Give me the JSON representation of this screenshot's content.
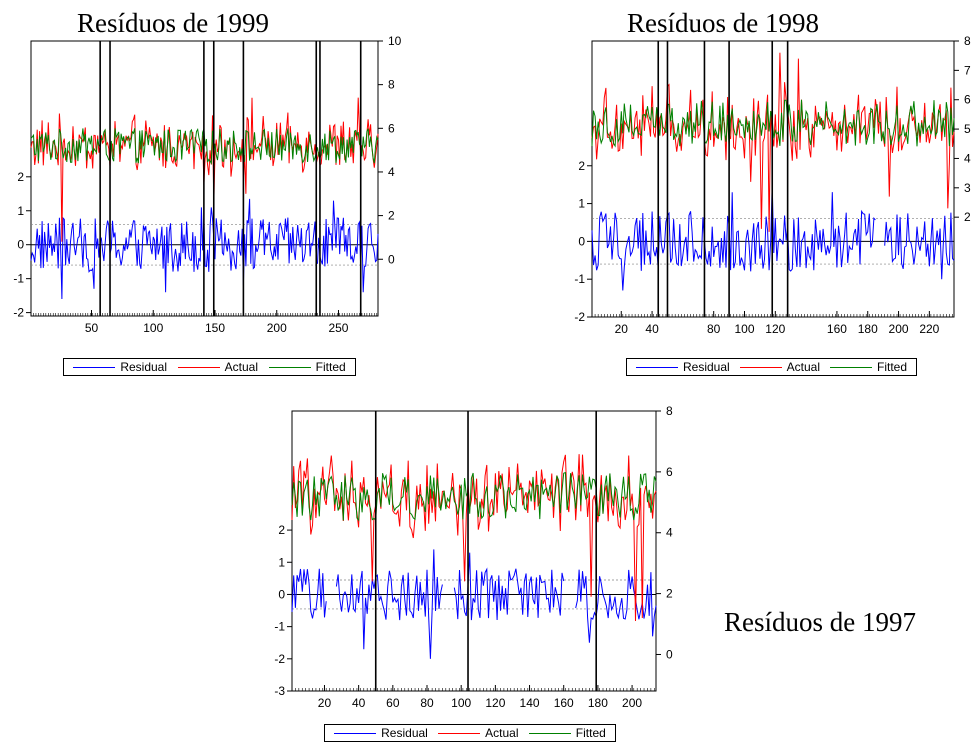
{
  "colors": {
    "residual": "#0000ff",
    "actual": "#ff0000",
    "fitted": "#008000",
    "frame": "#000000",
    "band": "#808080"
  },
  "chart_data": [
    {
      "id": "c1999",
      "type": "line",
      "title": "Resíduos de 1999",
      "series": [
        {
          "name": "Residual"
        },
        {
          "name": "Actual"
        },
        {
          "name": "Fitted"
        }
      ],
      "x_range": [
        1,
        282
      ],
      "x_ticks": [
        50,
        100,
        150,
        200,
        250
      ],
      "left_axis": {
        "ticks": [
          -2,
          -1,
          0,
          1,
          2
        ],
        "range": [
          -2.1,
          6.0
        ]
      },
      "right_axis": {
        "ticks": [
          0,
          2,
          4,
          6,
          8,
          10
        ],
        "range": [
          -2.6,
          10.0
        ]
      },
      "band": 0.6,
      "vlines": [
        57,
        65,
        141,
        149,
        173,
        232,
        235,
        268
      ],
      "n": 282,
      "residual_gaps": [],
      "residual_spikes": [
        [
          26,
          -1.6
        ],
        [
          52,
          -1.3
        ],
        [
          110,
          -1.4
        ],
        [
          139,
          1.1
        ],
        [
          147,
          1.1
        ],
        [
          173,
          -1.2
        ],
        [
          178,
          1.35
        ],
        [
          246,
          1.3
        ],
        [
          270,
          -1.4
        ]
      ],
      "actual_spikes": [
        [
          26,
          0.8
        ],
        [
          141,
          3.4
        ],
        [
          149,
          2.5
        ],
        [
          175,
          3.0
        ],
        [
          180,
          7.4
        ],
        [
          266,
          7.4
        ]
      ]
    },
    {
      "id": "c1998",
      "type": "line",
      "title": "Resíduos de 1998",
      "series": [
        {
          "name": "Residual"
        },
        {
          "name": "Actual"
        },
        {
          "name": "Fitted"
        }
      ],
      "x_range": [
        1,
        236
      ],
      "x_ticks": [
        20,
        40,
        80,
        100,
        120,
        160,
        180,
        200,
        220
      ],
      "left_axis": {
        "ticks": [
          -2,
          -1,
          0,
          1,
          2
        ],
        "range": [
          -2.0,
          5.3
        ]
      },
      "right_axis": {
        "ticks": [
          2,
          3,
          4,
          5,
          6,
          7,
          8
        ],
        "range": [
          -1.4,
          8.0
        ]
      },
      "band": 0.6,
      "vlines": [
        44,
        50,
        74,
        90,
        118,
        128
      ],
      "n": 236,
      "residual_gaps": [
        [
          186,
          190
        ]
      ],
      "residual_spikes": [
        [
          21,
          -1.3
        ],
        [
          92,
          1.3
        ],
        [
          118,
          1.5
        ],
        [
          157,
          1.3
        ],
        [
          190,
          -1.5
        ],
        [
          228,
          -1.0
        ]
      ],
      "actual_spikes": [
        [
          104,
          3.2
        ],
        [
          111,
          1.6
        ],
        [
          116,
          1.5
        ],
        [
          123,
          7.6
        ],
        [
          135,
          7.4
        ],
        [
          194,
          2.7
        ],
        [
          232,
          2.3
        ]
      ]
    },
    {
      "id": "c1997",
      "type": "line",
      "title": "Resíduos de 1997",
      "series": [
        {
          "name": "Residual"
        },
        {
          "name": "Actual"
        },
        {
          "name": "Fitted"
        }
      ],
      "x_range": [
        1,
        214
      ],
      "x_ticks": [
        20,
        40,
        60,
        80,
        100,
        120,
        140,
        160,
        180,
        200
      ],
      "left_axis": {
        "ticks": [
          -3,
          -2,
          -1,
          0,
          1,
          2
        ],
        "range": [
          -3.0,
          5.7
        ]
      },
      "right_axis": {
        "ticks": [
          0,
          2,
          4,
          6,
          8
        ],
        "range": [
          -1.2,
          8.0
        ]
      },
      "band": 0.45,
      "vlines": [
        50,
        104,
        179
      ],
      "n": 214,
      "residual_gaps": [
        [
          22,
          26
        ],
        [
          90,
          95
        ],
        [
          161,
          166
        ]
      ],
      "residual_spikes": [
        [
          23,
          -1.2
        ],
        [
          43,
          -1.7
        ],
        [
          82,
          -2.0
        ],
        [
          84,
          1.4
        ],
        [
          105,
          1.3
        ],
        [
          163,
          1.6
        ],
        [
          175,
          -1.5
        ],
        [
          212,
          -1.3
        ]
      ],
      "actual_spikes": [
        [
          48,
          2.4
        ],
        [
          102,
          2.4
        ],
        [
          176,
          1.9
        ],
        [
          202,
          1.1
        ],
        [
          206,
          1.2
        ]
      ]
    }
  ],
  "side_label": "Resíduos de 1997"
}
